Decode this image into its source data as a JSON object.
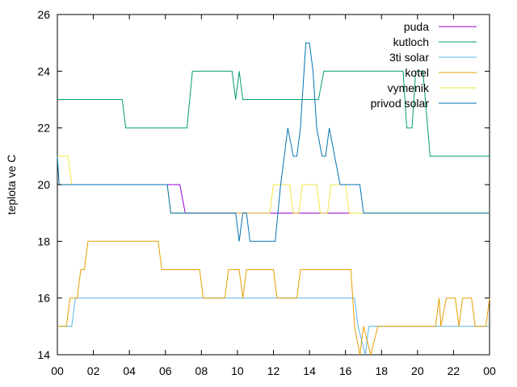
{
  "chart_data": {
    "type": "line",
    "ylabel": "teplota ve C",
    "xlim": [
      0,
      24
    ],
    "ylim": [
      14,
      26
    ],
    "grid": false,
    "legend_position": "top-right",
    "x_tick_labels": [
      "00",
      "02",
      "04",
      "06",
      "08",
      "10",
      "12",
      "14",
      "16",
      "18",
      "20",
      "22",
      "00"
    ],
    "y_tick_labels": [
      "14",
      "16",
      "18",
      "20",
      "22",
      "24",
      "26"
    ],
    "series": [
      {
        "name": "puda",
        "color": "#9400d3",
        "points": [
          [
            0,
            20
          ],
          [
            6.1,
            20
          ],
          [
            6.8,
            20
          ],
          [
            7.1,
            19
          ],
          [
            16.3,
            19
          ]
        ]
      },
      {
        "name": "kutloch",
        "color": "#009e73",
        "points": [
          [
            0,
            23
          ],
          [
            3.6,
            23
          ],
          [
            3.8,
            22
          ],
          [
            7.2,
            22
          ],
          [
            7.5,
            24
          ],
          [
            9.7,
            24
          ],
          [
            9.9,
            23
          ],
          [
            10.1,
            24
          ],
          [
            10.3,
            23
          ],
          [
            14.5,
            23
          ],
          [
            14.8,
            24
          ],
          [
            19.2,
            24
          ],
          [
            19.4,
            22
          ],
          [
            19.7,
            22
          ],
          [
            19.9,
            24
          ],
          [
            20.3,
            24
          ],
          [
            20.7,
            21
          ],
          [
            24,
            21
          ]
        ]
      },
      {
        "name": "3ti solar",
        "color": "#56b4e9",
        "points": [
          [
            0,
            15
          ],
          [
            0.8,
            15
          ],
          [
            1.0,
            16
          ],
          [
            16.5,
            16
          ],
          [
            16.7,
            15
          ],
          [
            17.1,
            14
          ],
          [
            17.3,
            15
          ],
          [
            24,
            15
          ]
        ]
      },
      {
        "name": "kotel",
        "color": "#e69f00",
        "points": [
          [
            0,
            15
          ],
          [
            0.5,
            15
          ],
          [
            0.7,
            16
          ],
          [
            1.1,
            16
          ],
          [
            1.3,
            17
          ],
          [
            1.5,
            17
          ],
          [
            1.7,
            18
          ],
          [
            5.6,
            18
          ],
          [
            5.8,
            17
          ],
          [
            7.9,
            17
          ],
          [
            8.1,
            16
          ],
          [
            9.3,
            16
          ],
          [
            9.5,
            17
          ],
          [
            10.1,
            17
          ],
          [
            10.3,
            16
          ],
          [
            10.5,
            17
          ],
          [
            12.0,
            17
          ],
          [
            12.2,
            16
          ],
          [
            13.3,
            16
          ],
          [
            13.5,
            17
          ],
          [
            16.3,
            17
          ],
          [
            16.5,
            15
          ],
          [
            16.8,
            14
          ],
          [
            17.0,
            15
          ],
          [
            17.4,
            14
          ],
          [
            17.8,
            15
          ],
          [
            21.0,
            15
          ],
          [
            21.2,
            16
          ],
          [
            21.3,
            15
          ],
          [
            21.6,
            16
          ],
          [
            22.1,
            16
          ],
          [
            22.3,
            15
          ],
          [
            22.5,
            16
          ],
          [
            23.0,
            16
          ],
          [
            23.2,
            15
          ],
          [
            23.8,
            15
          ],
          [
            24,
            16
          ]
        ]
      },
      {
        "name": "vymenik",
        "color": "#f0e442",
        "points": [
          [
            0,
            21
          ],
          [
            0.6,
            21
          ],
          [
            0.8,
            20
          ],
          [
            6.1,
            20
          ],
          [
            6.3,
            19
          ],
          [
            11.8,
            19
          ],
          [
            12.0,
            20
          ],
          [
            12.9,
            20
          ],
          [
            13.1,
            19
          ],
          [
            13.4,
            19
          ],
          [
            13.6,
            20
          ],
          [
            14.4,
            20
          ],
          [
            14.6,
            19
          ],
          [
            15.0,
            19
          ],
          [
            15.2,
            20
          ],
          [
            16.0,
            20
          ],
          [
            16.2,
            19
          ],
          [
            24,
            19
          ]
        ]
      },
      {
        "name": "privod solar",
        "color": "#0072b2",
        "points": [
          [
            0,
            21
          ],
          [
            0.1,
            20
          ],
          [
            6.1,
            20
          ],
          [
            6.3,
            19
          ],
          [
            9.9,
            19
          ],
          [
            10.1,
            18
          ],
          [
            10.3,
            19
          ],
          [
            10.5,
            19
          ],
          [
            10.7,
            18
          ],
          [
            12.1,
            18
          ],
          [
            12.4,
            20
          ],
          [
            12.6,
            21
          ],
          [
            12.8,
            22
          ],
          [
            13.1,
            21
          ],
          [
            13.3,
            21
          ],
          [
            13.5,
            22
          ],
          [
            13.8,
            25
          ],
          [
            14.0,
            25
          ],
          [
            14.2,
            24
          ],
          [
            14.4,
            22
          ],
          [
            14.7,
            21
          ],
          [
            14.9,
            21
          ],
          [
            15.1,
            22
          ],
          [
            15.4,
            21
          ],
          [
            15.7,
            20
          ],
          [
            16.8,
            20
          ],
          [
            17.0,
            19
          ],
          [
            24,
            19
          ]
        ]
      }
    ]
  }
}
